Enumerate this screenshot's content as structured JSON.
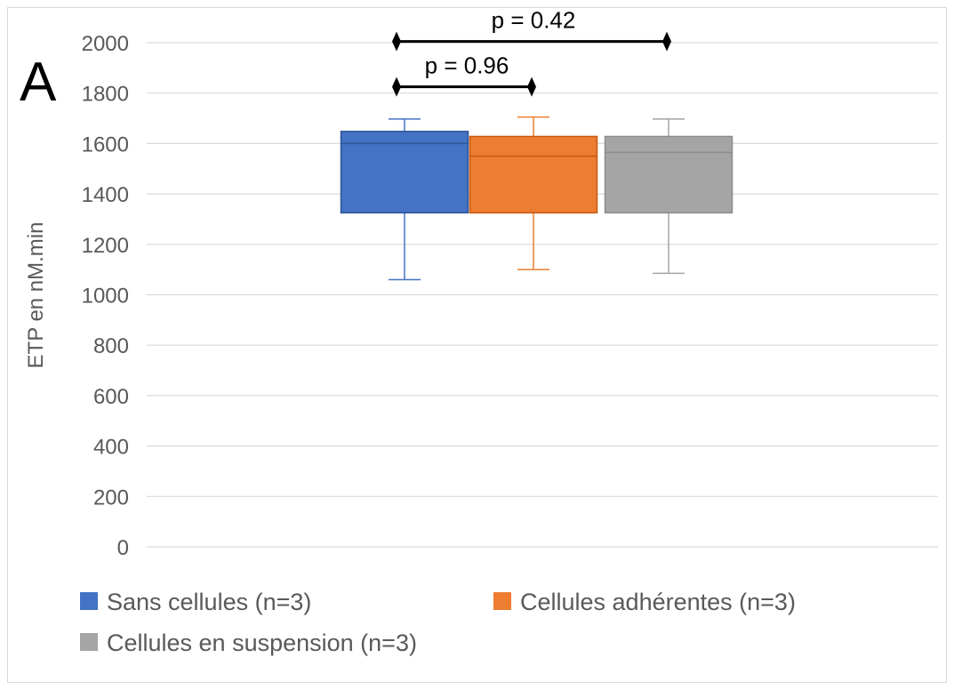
{
  "panel_label": "A",
  "chart_data": {
    "type": "boxplot",
    "ylabel": "ETP en nM.min",
    "ylim": [
      0,
      2000
    ],
    "yticks": [
      0,
      200,
      400,
      600,
      800,
      1000,
      1200,
      1400,
      1600,
      1800,
      2000
    ],
    "grid": true,
    "legend_position": "bottom",
    "series": [
      {
        "name": "Sans cellules (n=3)",
        "color": "#4472c4",
        "min": 1060,
        "q1": 1325,
        "median": 1600,
        "q3": 1648,
        "max": 1697
      },
      {
        "name": "Cellules adhérentes (n=3)",
        "color": "#ed7d31",
        "min": 1100,
        "q1": 1325,
        "median": 1550,
        "q3": 1628,
        "max": 1705
      },
      {
        "name": "Cellules en suspension (n=3)",
        "color": "#a5a5a5",
        "min": 1085,
        "q1": 1325,
        "median": 1565,
        "q3": 1628,
        "max": 1697
      }
    ],
    "annotations": [
      {
        "label": "p = 0.96",
        "from": 0,
        "to": 1,
        "level": 1825
      },
      {
        "label": "p = 0.42",
        "from": 0,
        "to": 2,
        "level": 2005
      }
    ]
  }
}
